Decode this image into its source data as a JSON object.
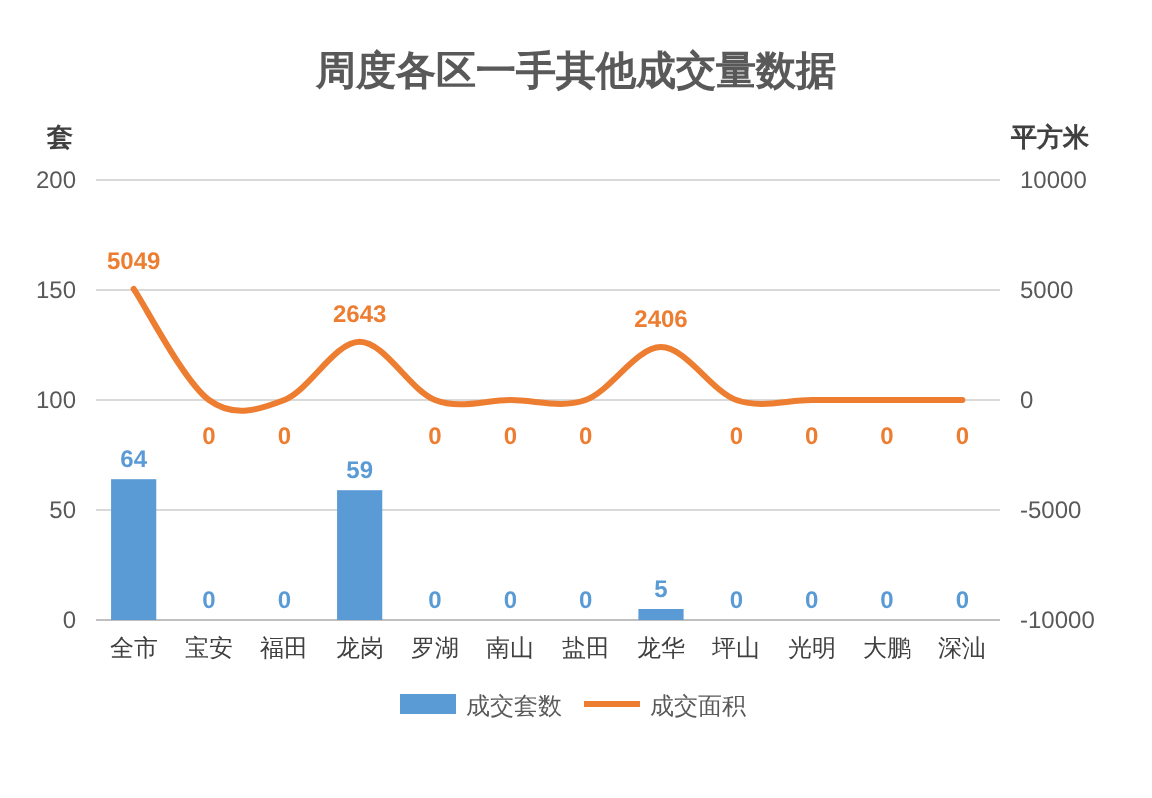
{
  "chart_data": {
    "type": "bar",
    "title": "周度各区一手其他成交量数据",
    "ylabel": "套",
    "y2label": "平方米",
    "categories": [
      "全市",
      "宝安",
      "福田",
      "龙岗",
      "罗湖",
      "南山",
      "盐田",
      "龙华",
      "坪山",
      "光明",
      "大鹏",
      "深汕"
    ],
    "series": [
      {
        "name": "成交套数",
        "color": "#5b9bd5",
        "values": [
          64,
          0,
          0,
          59,
          0,
          0,
          0,
          5,
          0,
          0,
          0,
          0
        ]
      },
      {
        "name": "成交面积",
        "type": "line",
        "axis": "y2",
        "color": "#ed7d31",
        "values": [
          5049,
          0,
          0,
          2643,
          0,
          0,
          0,
          2406,
          0,
          0,
          0,
          0
        ]
      }
    ],
    "ylim": [
      0,
      200
    ],
    "yticks": [
      0,
      50,
      100,
      150,
      200
    ],
    "y2lim": [
      -10000,
      10000
    ],
    "y2ticks": [
      -10000,
      -5000,
      0,
      5000,
      10000
    ],
    "grid": "y",
    "legend": "bottom",
    "data_labels": true,
    "marker": "none"
  }
}
